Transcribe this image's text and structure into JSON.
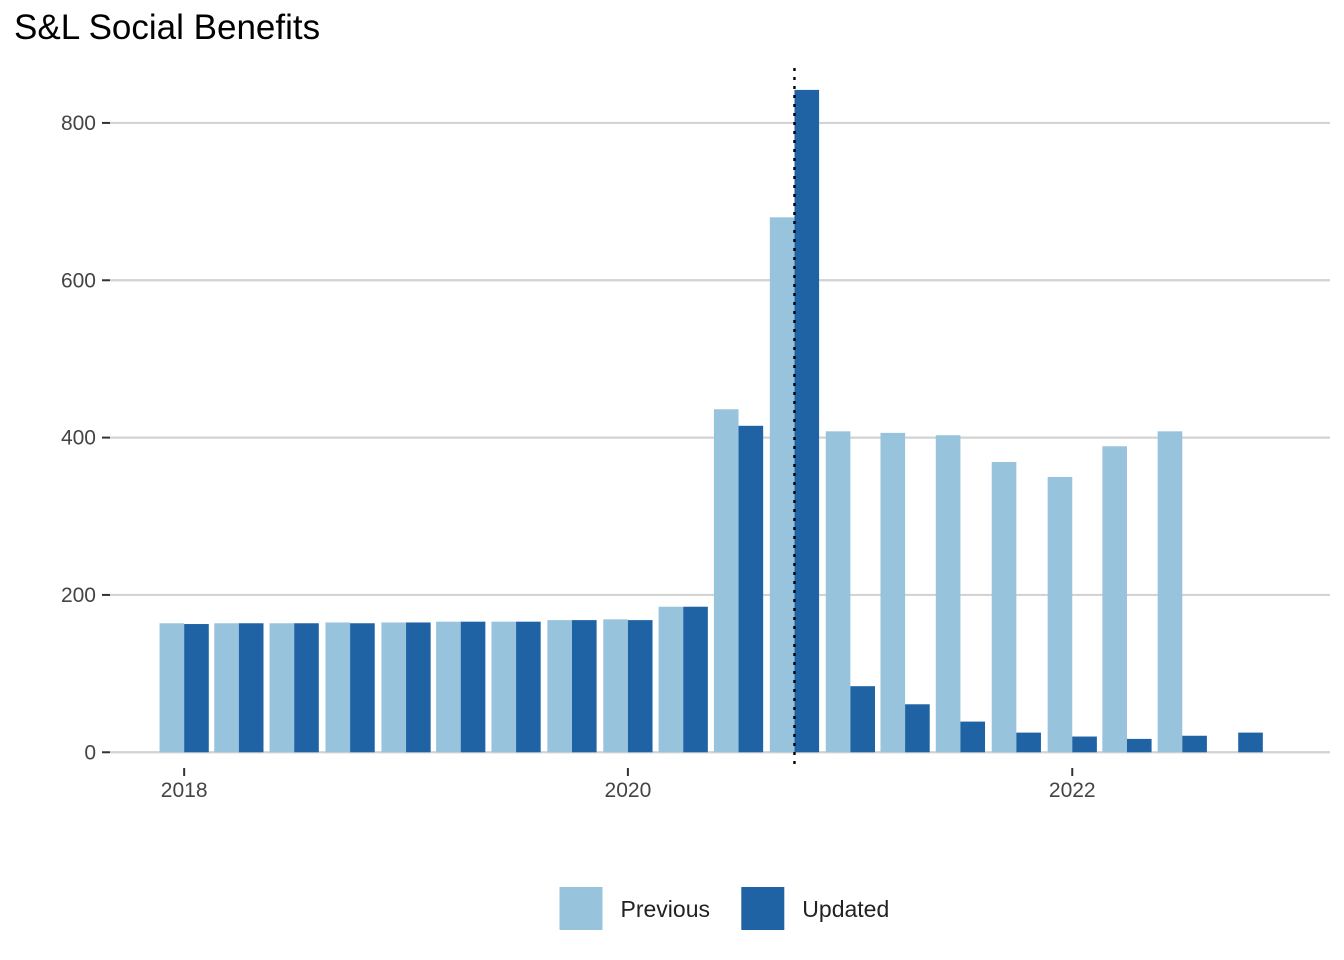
{
  "chart_data": {
    "type": "bar",
    "title": "S&L Social Benefits",
    "xlabel": "",
    "ylabel": "",
    "x": [
      "2018-01-01",
      "2018-04-01",
      "2018-07-01",
      "2018-10-01",
      "2019-01-01",
      "2019-04-01",
      "2019-07-01",
      "2019-10-01",
      "2020-01-01",
      "2020-04-01",
      "2020-07-01",
      "2020-10-01",
      "2021-01-01",
      "2021-04-01",
      "2021-07-01",
      "2021-10-01",
      "2022-01-01",
      "2022-04-01",
      "2022-07-01",
      "2022-10-01"
    ],
    "series": [
      {
        "name": "Previous",
        "color": "#98c3dc",
        "values": [
          164,
          164,
          164,
          165,
          165,
          166,
          166,
          168,
          169,
          185,
          436,
          680,
          408,
          406,
          403,
          369,
          350,
          389,
          408,
          null
        ]
      },
      {
        "name": "Updated",
        "color": "#1f63a5",
        "values": [
          163,
          164,
          164,
          164,
          165,
          166,
          166,
          168,
          168,
          185,
          415,
          842,
          84,
          61,
          39,
          25,
          20,
          17,
          21,
          25
        ]
      }
    ],
    "xlim": [
      "2017-09-01",
      "2023-03-01"
    ],
    "ylim": [
      -20,
      880
    ],
    "y_ticks": [
      0,
      200,
      400,
      600,
      800
    ],
    "x_ticks": [
      {
        "date": "2018-01-01",
        "label": "2018"
      },
      {
        "date": "2020-01-01",
        "label": "2020"
      },
      {
        "date": "2022-01-01",
        "label": "2022"
      }
    ],
    "reference_line": {
      "date": "2020-10-01",
      "style": "dotted"
    },
    "grid": "horizontal",
    "legend_position": "bottom"
  }
}
